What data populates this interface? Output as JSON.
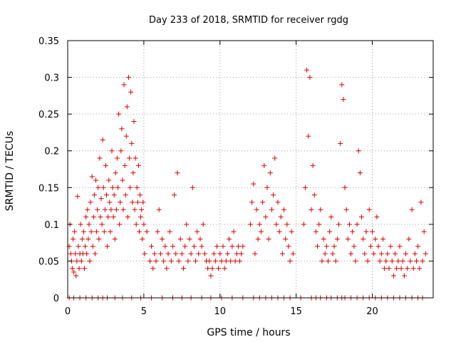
{
  "chart_data": {
    "type": "scatter",
    "title": "Day 233 of 2018, SRMTID for receiver rgdg",
    "xlabel": "GPS time / hours",
    "ylabel": "SRMTID / TECUs",
    "xlim": [
      0,
      24
    ],
    "ylim": [
      0,
      0.35
    ],
    "x_ticks": [
      0,
      5,
      10,
      15,
      20
    ],
    "x_tick_labels": [
      "0",
      "5",
      "10",
      "15",
      "20"
    ],
    "y_ticks": [
      0,
      0.05,
      0.1,
      0.15,
      0.2,
      0.25,
      0.3,
      0.35
    ],
    "y_tick_labels": [
      "0",
      "0.05",
      "0.1",
      "0.15",
      "0.2",
      "0.25",
      "0.3",
      "0.35"
    ],
    "grid": true,
    "marker": "+",
    "colors": {
      "points": "#dd0000",
      "grid": "#a0a0a0",
      "axis": "#000000"
    },
    "series": [
      {
        "name": "SRMTID",
        "points": [
          [
            0.1,
            0.07
          ],
          [
            0.15,
            0.1
          ],
          [
            0.2,
            0.06
          ],
          [
            0.25,
            0.05
          ],
          [
            0.3,
            0.04
          ],
          [
            0.35,
            0.08
          ],
          [
            0.4,
            0.035
          ],
          [
            0.45,
            0.09
          ],
          [
            0.5,
            0.06
          ],
          [
            0.55,
            0.03
          ],
          [
            0.6,
            0.05
          ],
          [
            0.65,
            0.138
          ],
          [
            0.7,
            0.07
          ],
          [
            0.75,
            0.04
          ],
          [
            0.8,
            0.06
          ],
          [
            0.85,
            0.1
          ],
          [
            0.9,
            0.05
          ],
          [
            0.95,
            0.08
          ],
          [
            1.0,
            0.06
          ],
          [
            1.05,
            0.09
          ],
          [
            1.1,
            0.04
          ],
          [
            1.15,
            0.07
          ],
          [
            1.2,
            0.11
          ],
          [
            1.25,
            0.06
          ],
          [
            1.3,
            0.12
          ],
          [
            1.35,
            0.08
          ],
          [
            1.4,
            0.1
          ],
          [
            1.45,
            0.05
          ],
          [
            1.5,
            0.13
          ],
          [
            1.55,
            0.09
          ],
          [
            1.6,
            0.165
          ],
          [
            1.65,
            0.07
          ],
          [
            1.7,
            0.11
          ],
          [
            1.75,
            0.14
          ],
          [
            1.8,
            0.06
          ],
          [
            1.85,
            0.16
          ],
          [
            1.9,
            0.09
          ],
          [
            1.95,
            0.12
          ],
          [
            2.0,
            0.15
          ],
          [
            2.05,
            0.08
          ],
          [
            2.1,
            0.19
          ],
          [
            2.15,
            0.11
          ],
          [
            2.2,
            0.135
          ],
          [
            2.25,
            0.1
          ],
          [
            2.3,
            0.215
          ],
          [
            2.35,
            0.15
          ],
          [
            2.4,
            0.09
          ],
          [
            2.45,
            0.12
          ],
          [
            2.5,
            0.18
          ],
          [
            2.55,
            0.14
          ],
          [
            2.6,
            0.07
          ],
          [
            2.65,
            0.11
          ],
          [
            2.7,
            0.16
          ],
          [
            2.75,
            0.13
          ],
          [
            2.8,
            0.09
          ],
          [
            2.85,
            0.12
          ],
          [
            2.9,
            0.2
          ],
          [
            2.95,
            0.15
          ],
          [
            3.0,
            0.11
          ],
          [
            3.05,
            0.14
          ],
          [
            3.1,
            0.08
          ],
          [
            3.15,
            0.17
          ],
          [
            3.2,
            0.12
          ],
          [
            3.25,
            0.19
          ],
          [
            3.3,
            0.15
          ],
          [
            3.35,
            0.25
          ],
          [
            3.4,
            0.1
          ],
          [
            3.45,
            0.13
          ],
          [
            3.5,
            0.2
          ],
          [
            3.55,
            0.23
          ],
          [
            3.6,
            0.16
          ],
          [
            3.65,
            0.12
          ],
          [
            3.7,
            0.29
          ],
          [
            3.75,
            0.18
          ],
          [
            3.8,
            0.14
          ],
          [
            3.85,
            0.22
          ],
          [
            3.9,
            0.26
          ],
          [
            3.95,
            0.11
          ],
          [
            4.0,
            0.3
          ],
          [
            4.05,
            0.19
          ],
          [
            4.1,
            0.15
          ],
          [
            4.15,
            0.28
          ],
          [
            4.2,
            0.21
          ],
          [
            4.25,
            0.13
          ],
          [
            4.3,
            0.17
          ],
          [
            4.35,
            0.24
          ],
          [
            4.4,
            0.12
          ],
          [
            4.45,
            0.19
          ],
          [
            4.5,
            0.1
          ],
          [
            4.55,
            0.15
          ],
          [
            4.6,
            0.13
          ],
          [
            4.65,
            0.18
          ],
          [
            4.7,
            0.09
          ],
          [
            4.75,
            0.14
          ],
          [
            4.8,
            0.11
          ],
          [
            4.85,
            0.12
          ],
          [
            4.9,
            0.08
          ],
          [
            4.95,
            0.13
          ],
          [
            5.0,
            0.1
          ],
          [
            5.05,
            0.06
          ],
          [
            5.2,
            0.09
          ],
          [
            5.4,
            0.05
          ],
          [
            5.5,
            0.07
          ],
          [
            5.6,
            0.04
          ],
          [
            5.7,
            0.06
          ],
          [
            5.8,
            0.05
          ],
          [
            5.9,
            0.09
          ],
          [
            6.0,
            0.12
          ],
          [
            6.1,
            0.06
          ],
          [
            6.2,
            0.08
          ],
          [
            6.3,
            0.05
          ],
          [
            6.4,
            0.07
          ],
          [
            6.5,
            0.04
          ],
          [
            6.6,
            0.06
          ],
          [
            6.7,
            0.09
          ],
          [
            6.8,
            0.05
          ],
          [
            6.9,
            0.07
          ],
          [
            7.0,
            0.14
          ],
          [
            7.1,
            0.06
          ],
          [
            7.2,
            0.17
          ],
          [
            7.3,
            0.05
          ],
          [
            7.4,
            0.08
          ],
          [
            7.5,
            0.06
          ],
          [
            7.6,
            0.04
          ],
          [
            7.7,
            0.07
          ],
          [
            7.8,
            0.1
          ],
          [
            7.9,
            0.05
          ],
          [
            8.0,
            0.08
          ],
          [
            8.1,
            0.06
          ],
          [
            8.2,
            0.15
          ],
          [
            8.3,
            0.07
          ],
          [
            8.4,
            0.05
          ],
          [
            8.5,
            0.09
          ],
          [
            8.6,
            0.06
          ],
          [
            8.7,
            0.08
          ],
          [
            8.8,
            0.07
          ],
          [
            8.9,
            0.1
          ],
          [
            9.0,
            0.06
          ],
          [
            9.1,
            0.05
          ],
          [
            9.2,
            0.04
          ],
          [
            9.3,
            0.05
          ],
          [
            9.4,
            0.03
          ],
          [
            9.5,
            0.04
          ],
          [
            9.6,
            0.06
          ],
          [
            9.7,
            0.05
          ],
          [
            9.8,
            0.07
          ],
          [
            9.9,
            0.04
          ],
          [
            10.0,
            0.06
          ],
          [
            10.1,
            0.05
          ],
          [
            10.2,
            0.07
          ],
          [
            10.3,
            0.04
          ],
          [
            10.4,
            0.05
          ],
          [
            10.5,
            0.06
          ],
          [
            10.6,
            0.08
          ],
          [
            10.7,
            0.05
          ],
          [
            10.8,
            0.07
          ],
          [
            10.9,
            0.09
          ],
          [
            11.0,
            0.05
          ],
          [
            11.1,
            0.06
          ],
          [
            11.2,
            0.07
          ],
          [
            11.3,
            0.05
          ],
          [
            11.4,
            0.06
          ],
          [
            11.5,
            0.07
          ],
          [
            12.0,
            0.1
          ],
          [
            12.1,
            0.13
          ],
          [
            12.2,
            0.155
          ],
          [
            12.3,
            0.06
          ],
          [
            12.4,
            0.12
          ],
          [
            12.5,
            0.08
          ],
          [
            12.6,
            0.1
          ],
          [
            12.7,
            0.09
          ],
          [
            12.8,
            0.13
          ],
          [
            12.9,
            0.18
          ],
          [
            13.0,
            0.11
          ],
          [
            13.1,
            0.15
          ],
          [
            13.2,
            0.08
          ],
          [
            13.3,
            0.17
          ],
          [
            13.4,
            0.12
          ],
          [
            13.5,
            0.14
          ],
          [
            13.6,
            0.19
          ],
          [
            13.7,
            0.1
          ],
          [
            13.8,
            0.13
          ],
          [
            13.9,
            0.09
          ],
          [
            14.0,
            0.11
          ],
          [
            14.1,
            0.06
          ],
          [
            14.2,
            0.12
          ],
          [
            14.3,
            0.08
          ],
          [
            14.4,
            0.1
          ],
          [
            14.5,
            0.07
          ],
          [
            14.6,
            0.05
          ],
          [
            14.7,
            0.09
          ],
          [
            14.8,
            0.06
          ],
          [
            15.5,
            0.1
          ],
          [
            15.6,
            0.15
          ],
          [
            15.7,
            0.31
          ],
          [
            15.8,
            0.22
          ],
          [
            15.9,
            0.3
          ],
          [
            16.0,
            0.12
          ],
          [
            16.1,
            0.18
          ],
          [
            16.2,
            0.14
          ],
          [
            16.3,
            0.09
          ],
          [
            16.4,
            0.07
          ],
          [
            16.5,
            0.1
          ],
          [
            16.6,
            0.12
          ],
          [
            16.7,
            0.05
          ],
          [
            16.8,
            0.08
          ],
          [
            16.9,
            0.06
          ],
          [
            17.0,
            0.07
          ],
          [
            17.1,
            0.05
          ],
          [
            17.2,
            0.09
          ],
          [
            17.3,
            0.11
          ],
          [
            17.4,
            0.06
          ],
          [
            17.5,
            0.07
          ],
          [
            17.6,
            0.05
          ],
          [
            17.7,
            0.08
          ],
          [
            17.8,
            0.1
          ],
          [
            17.9,
            0.21
          ],
          [
            18.0,
            0.29
          ],
          [
            18.1,
            0.27
          ],
          [
            18.2,
            0.15
          ],
          [
            18.3,
            0.12
          ],
          [
            18.4,
            0.08
          ],
          [
            18.5,
            0.1
          ],
          [
            18.6,
            0.06
          ],
          [
            18.7,
            0.09
          ],
          [
            18.8,
            0.07
          ],
          [
            18.9,
            0.05
          ],
          [
            19.0,
            0.1
          ],
          [
            19.1,
            0.2
          ],
          [
            19.2,
            0.17
          ],
          [
            19.3,
            0.11
          ],
          [
            19.4,
            0.08
          ],
          [
            19.5,
            0.06
          ],
          [
            19.6,
            0.09
          ],
          [
            19.7,
            0.05
          ],
          [
            19.8,
            0.12
          ],
          [
            19.9,
            0.07
          ],
          [
            20.0,
            0.09
          ],
          [
            20.1,
            0.06
          ],
          [
            20.2,
            0.08
          ],
          [
            20.3,
            0.11
          ],
          [
            20.4,
            0.07
          ],
          [
            20.5,
            0.05
          ],
          [
            20.6,
            0.06
          ],
          [
            20.7,
            0.08
          ],
          [
            20.8,
            0.04
          ],
          [
            20.9,
            0.05
          ],
          [
            21.0,
            0.06
          ],
          [
            21.1,
            0.04
          ],
          [
            21.2,
            0.07
          ],
          [
            21.3,
            0.05
          ],
          [
            21.4,
            0.03
          ],
          [
            21.5,
            0.06
          ],
          [
            21.6,
            0.04
          ],
          [
            21.7,
            0.05
          ],
          [
            21.8,
            0.07
          ],
          [
            21.9,
            0.04
          ],
          [
            22.0,
            0.05
          ],
          [
            22.1,
            0.03
          ],
          [
            22.2,
            0.06
          ],
          [
            22.3,
            0.04
          ],
          [
            22.4,
            0.08
          ],
          [
            22.5,
            0.05
          ],
          [
            22.6,
            0.12
          ],
          [
            22.7,
            0.04
          ],
          [
            22.8,
            0.06
          ],
          [
            22.9,
            0.05
          ],
          [
            23.0,
            0.07
          ],
          [
            23.1,
            0.04
          ],
          [
            23.2,
            0.13
          ],
          [
            23.3,
            0.05
          ],
          [
            23.4,
            0.09
          ],
          [
            23.5,
            0.06
          ]
        ]
      }
    ],
    "zero_points_x": [
      0.1,
      0.4,
      0.8,
      1.2,
      1.6,
      2.0,
      2.3,
      2.6,
      3.1,
      3.6,
      4.2,
      4.8,
      5.5,
      6.2,
      6.9,
      7.5,
      8.1,
      8.8,
      9.4,
      10.1,
      10.8,
      11.5,
      12.2,
      12.6,
      13.0,
      13.4,
      13.8,
      14.2,
      14.6,
      15.3,
      16.0,
      16.3,
      16.6,
      17.0,
      17.3,
      17.7,
      18.0,
      18.2,
      18.6,
      19.0,
      19.4,
      19.8,
      20.2,
      20.6,
      21.0,
      21.4,
      21.8,
      22.2,
      22.6,
      23.0,
      23.3
    ]
  }
}
